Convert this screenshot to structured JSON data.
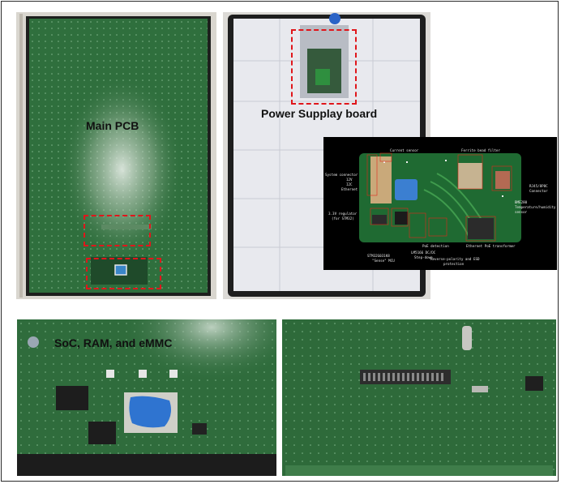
{
  "figure": {
    "main_pcb_label": "Main PCB",
    "power_supply_label": "Power Supplay board",
    "soc_label": "SoC, RAM, and eMMC"
  },
  "inset": {
    "annotations": {
      "current_sensor": "Current sensor",
      "ferrite": "Ferrite bead filter",
      "system_connector": "System connector",
      "v12": "12V",
      "i2c": "I2C",
      "ethernet": "Ethernet",
      "rj45": "RJ45/8P8C",
      "connector": "Connector",
      "bme": "BME280",
      "temp_humidity": "Temperature/humidity",
      "sensor": "sensor",
      "regulator": "3.3V regulator",
      "for_stm32": "(for STM32)",
      "stm32": "STM32G031K8",
      "sense_mcu": "\"Sense\" MCU",
      "lm5166": "LM5166 DC/DC",
      "stepdown": "Step-down",
      "poe_detection": "PoE detection",
      "reverse_polarity": "Reverse-polarity and ESD",
      "protection": "protection",
      "eth_poe": "Ethernet PoE transformer"
    }
  }
}
